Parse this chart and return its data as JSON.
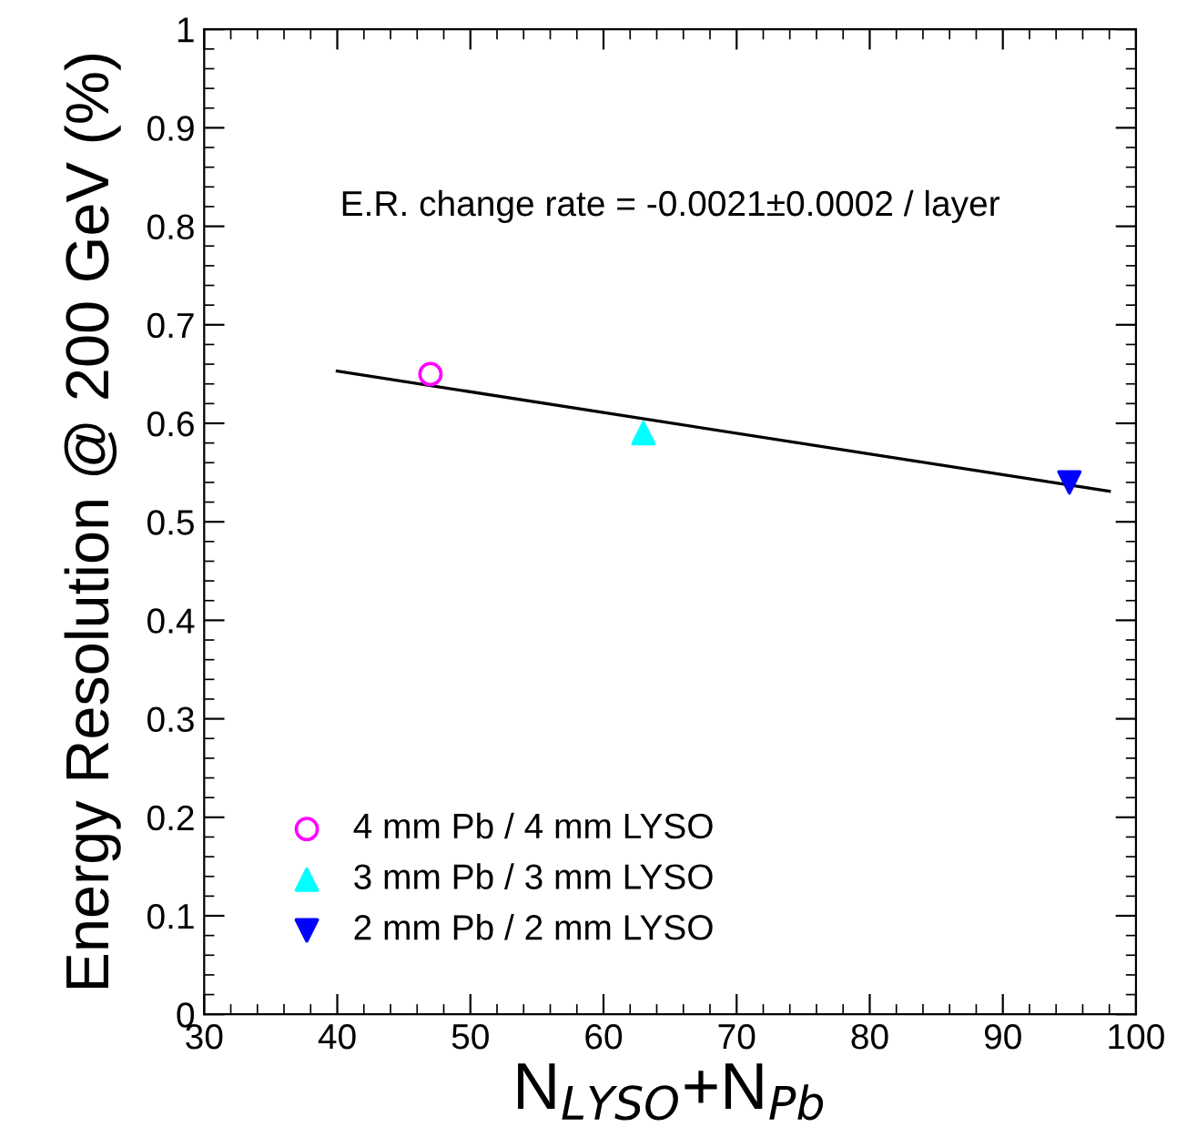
{
  "chart_data": {
    "type": "scatter",
    "xlabel": "N$_{LYSO}$+N$_{Pb}$",
    "ylabel": "Energy Resolution @ 200 GeV (%)",
    "annotations": [
      "E.R. change rate = -0.0021±0.0002 / layer"
    ],
    "series": [
      {
        "name": "4 mm Pb / 4 mm LYSO",
        "color": "#ff00ff",
        "marker": "circle",
        "x": [
          47
        ],
        "values": [
          0.65
        ]
      },
      {
        "name": "3 mm Pb / 3 mm LYSO",
        "color": "#00ffff",
        "marker": "triangle",
        "x": [
          63
        ],
        "values": [
          0.59
        ]
      },
      {
        "name": "2 mm Pb / 2 mm LYSO",
        "color": "#0000ff",
        "marker": "triangle_down",
        "x": [
          95
        ],
        "values": [
          0.54
        ]
      },
      {
        "type": "line",
        "color": "#000000",
        "marker": "none",
        "x": [
          40,
          98
        ],
        "values": [
          0.653,
          0.531
        ]
      }
    ],
    "xlim": [
      30,
      100
    ],
    "xticks": [
      30,
      40,
      50,
      60,
      70,
      80,
      90,
      100
    ],
    "ylim": [
      0,
      1
    ],
    "yticks": [
      0,
      0.1,
      0.2,
      0.3,
      0.4,
      0.5,
      0.6,
      0.7,
      0.8,
      0.9,
      1
    ],
    "grid": false,
    "legend": "bottom left"
  }
}
